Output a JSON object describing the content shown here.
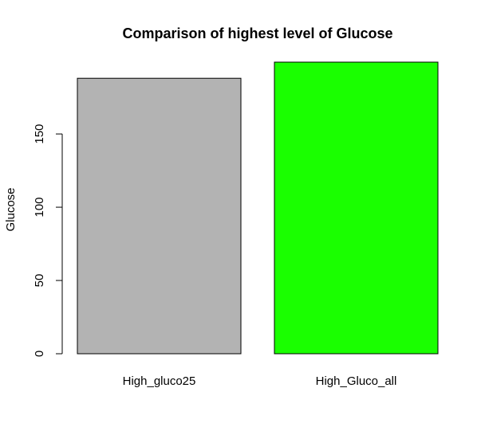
{
  "chart_data": {
    "type": "bar",
    "title": "Comparison of highest level of Glucose",
    "xlabel": "",
    "ylabel": "Glucose",
    "categories": [
      "High_gluco25",
      "High_Gluco_all"
    ],
    "values": [
      188,
      199
    ],
    "colors": [
      "#b3b3b3",
      "#1aff00"
    ],
    "yticks": [
      0,
      50,
      100,
      150
    ],
    "ylim": [
      0,
      199
    ],
    "grid": false,
    "legend": "none"
  }
}
